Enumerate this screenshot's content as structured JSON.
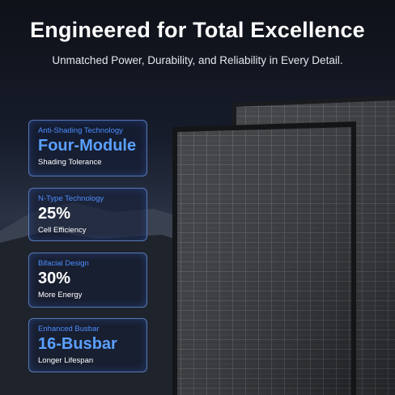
{
  "header": {
    "title": "Engineered for Total Excellence",
    "subtitle": "Unmatched Power, Durability, and Reliability in Every Detail."
  },
  "features": [
    {
      "label": "Anti-Shading Technology",
      "value": "Four-Module",
      "caption": "Shading Tolerance"
    },
    {
      "label": "N-Type Technology",
      "value": "25%",
      "caption": "Cell Efficiency"
    },
    {
      "label": "Bifacial Design",
      "value": "30%",
      "caption": "More Energy"
    },
    {
      "label": "Enhanced Busbar",
      "value": "16-Busbar",
      "caption": "Longer Lifespan"
    }
  ]
}
